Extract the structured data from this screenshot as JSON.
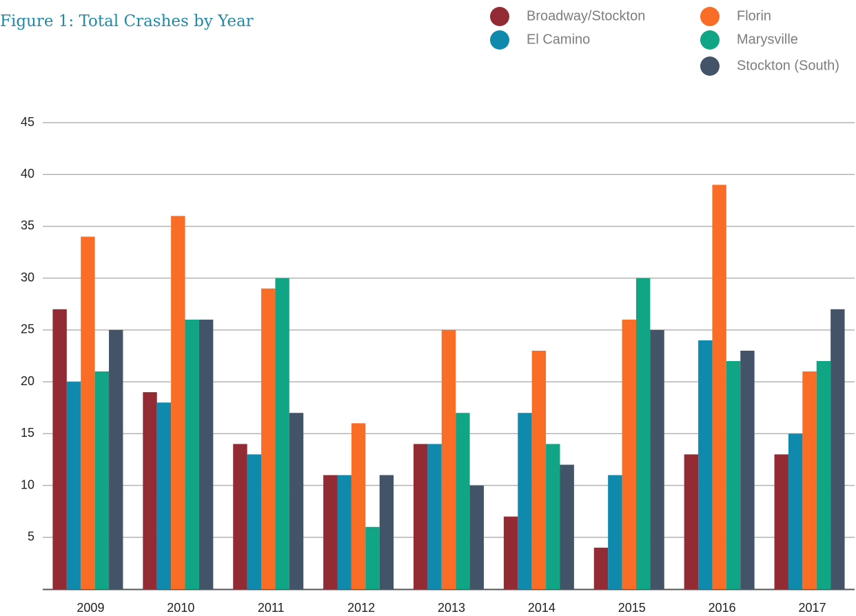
{
  "chart_data": {
    "type": "bar",
    "title": "Figure 1: Total Crashes by Year",
    "categories": [
      "2009",
      "2010",
      "2011",
      "2012",
      "2013",
      "2014",
      "2015",
      "2016",
      "2017"
    ],
    "series": [
      {
        "name": "Broadway/Stockton",
        "color": "#922b33",
        "values": [
          27,
          19,
          14,
          11,
          14,
          7,
          4,
          13,
          13
        ]
      },
      {
        "name": "El Camino",
        "color": "#0f8aad",
        "values": [
          20,
          18,
          13,
          11,
          14,
          17,
          11,
          24,
          15
        ]
      },
      {
        "name": "Florin",
        "color": "#f96d26",
        "values": [
          34,
          36,
          29,
          16,
          25,
          23,
          26,
          39,
          21
        ]
      },
      {
        "name": "Marysville",
        "color": "#10a584",
        "values": [
          21,
          26,
          30,
          6,
          17,
          14,
          30,
          22,
          22
        ]
      },
      {
        "name": "Stockton (South)",
        "color": "#435468",
        "values": [
          25,
          26,
          17,
          11,
          10,
          12,
          25,
          23,
          27
        ]
      }
    ],
    "ylim": [
      0,
      45
    ],
    "yticks": [
      5,
      10,
      15,
      20,
      25,
      30,
      35,
      40,
      45
    ],
    "grid": true
  }
}
